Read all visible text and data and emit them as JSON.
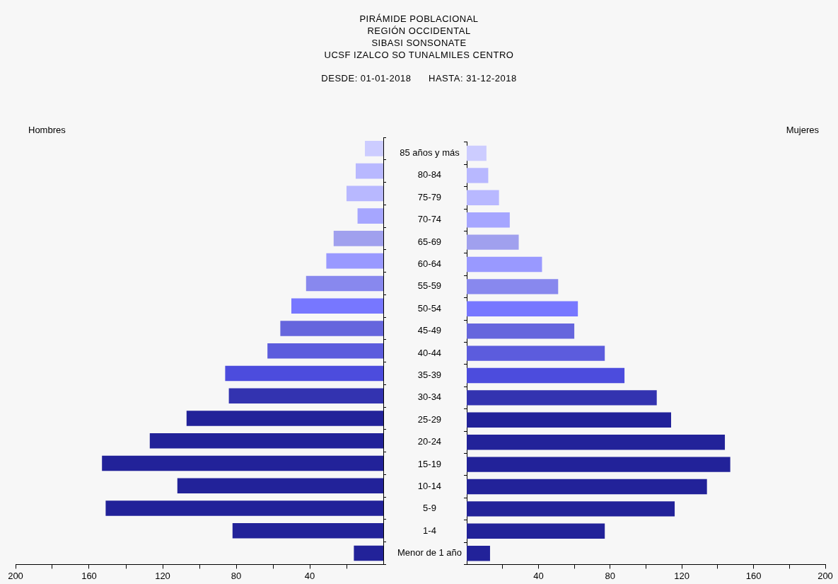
{
  "chart_data": [
    {
      "type": "bar",
      "orientation": "horizontal",
      "title": "PIRÁMIDE POBLACIONAL\nREGIÓN OCCIDENTAL\nSIBASI SONSONATE\nUCSF IZALCO SO TUNALMILES CENTRO",
      "subtitle": "DESDE: 01-01-2018      HASTA: 31-12-2018",
      "categories": [
        null,
        null,
        null,
        null,
        null,
        null,
        null,
        null,
        null,
        null,
        null,
        null,
        null,
        null,
        null,
        null,
        null,
        null,
        null
      ],
      "series": [
        {
          "name": "Hombres",
          "values": [
            10,
            15,
            20,
            14,
            27,
            31,
            42,
            50,
            56,
            63,
            86,
            84,
            107,
            127,
            153,
            112,
            151,
            82,
            16
          ],
          "colors": [
            "#ccccff",
            "#b8b8ff",
            "#b8b8ff",
            "#a6a6ff",
            "#a0a0ee",
            "#9999ff",
            "#8888ee",
            "#7777ff",
            "#6666dd",
            "#5c5cdd",
            "#4c4cdd",
            "#3333b0",
            "#222299",
            "#222299",
            "#222299",
            "#222299",
            "#222299",
            "#222299",
            "#222299"
          ]
        }
      ],
      "xlim": [
        200,
        0
      ],
      "xticks": [
        200,
        {
          "value": 180,
          "label": null
        },
        160,
        {
          "value": 140,
          "label": null
        },
        120,
        {
          "value": 100,
          "label": null
        },
        80,
        {
          "value": 60,
          "label": null
        },
        40,
        {
          "value": 20,
          "label": null
        }
      ],
      "tick_labels": "x"
    },
    {
      "type": "bar",
      "orientation": "horizontal",
      "categories": [
        "85 años y más",
        "80-84",
        "75-79",
        "70-74",
        "65-69",
        "60-64",
        "55-59",
        "50-54",
        "45-49",
        "40-44",
        "35-39",
        "30-34",
        "25-29",
        "20-24",
        "15-19",
        "10-14",
        "5-9",
        "1-4",
        "Menor de 1 año"
      ],
      "series": [
        {
          "name": "Mujeres",
          "values": [
            11,
            12,
            18,
            24,
            29,
            42,
            51,
            62,
            60,
            77,
            88,
            106,
            114,
            144,
            147,
            134,
            116,
            77,
            13
          ],
          "colors": [
            "#ccccff",
            "#b8b8ff",
            "#b8b8ff",
            "#a6a6ff",
            "#a0a0ee",
            "#9999ff",
            "#8888ee",
            "#7777ff",
            "#6666dd",
            "#5c5cdd",
            "#4c4cdd",
            "#3333b0",
            "#222299",
            "#222299",
            "#222299",
            "#222299",
            "#222299",
            "#222299",
            "#222299"
          ]
        }
      ],
      "xlim": [
        0,
        200
      ],
      "xticks": [
        {
          "value": 20,
          "label": null
        },
        40,
        {
          "value": 60,
          "label": null
        },
        80,
        {
          "value": 100,
          "label": null
        },
        120,
        {
          "value": 140,
          "label": null
        },
        160,
        {
          "value": 180,
          "label": null
        },
        200
      ]
    }
  ]
}
